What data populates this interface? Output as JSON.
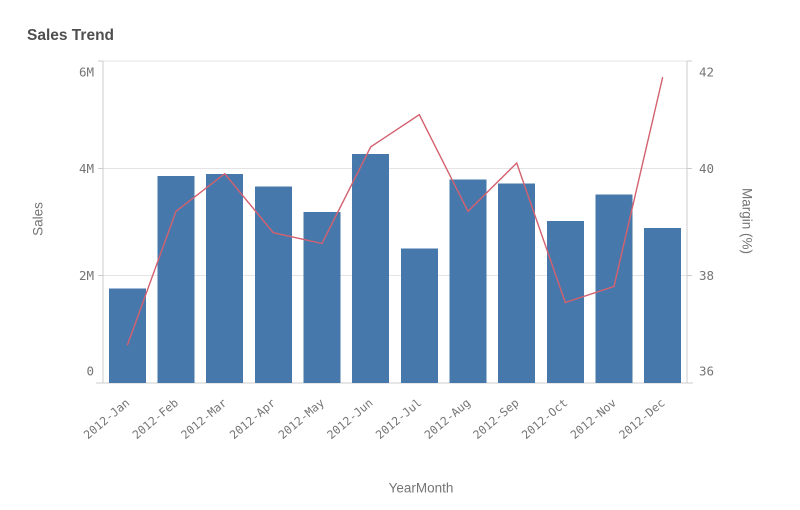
{
  "chart": {
    "title": "Sales Trend",
    "y_left_title": "Sales",
    "y_right_title": "Margin (%)",
    "x_title": "YearMonth"
  },
  "colors": {
    "bar": "#4678ab",
    "line": "#d4616f",
    "grid": "#e4e4e4",
    "axis_line": "#cccccc",
    "tick_text": "#757575",
    "title_text": "#4f4f4f"
  },
  "chart_data": {
    "type": "combo (bar + line)",
    "title": "Sales Trend",
    "categories": [
      "2012-Jan",
      "2012-Feb",
      "2012-Mar",
      "2012-Apr",
      "2012-May",
      "2012-Jun",
      "2012-Jul",
      "2012-Aug",
      "2012-Sep",
      "2012-Oct",
      "2012-Nov",
      "2012-Dec"
    ],
    "series": [
      {
        "name": "Sales",
        "type": "bar",
        "axis": "left",
        "values": [
          1760000,
          3860000,
          3890000,
          3660000,
          3190000,
          4270000,
          2510000,
          3790000,
          3720000,
          3020000,
          3510000,
          2890000
        ]
      },
      {
        "name": "Margin (%)",
        "type": "line",
        "axis": "right",
        "values": [
          36.7,
          39.2,
          39.9,
          38.8,
          38.6,
          40.4,
          41.0,
          39.2,
          40.1,
          37.5,
          37.8,
          41.7
        ]
      }
    ],
    "left_axis": {
      "title": "Sales",
      "tick_labels": [
        "0",
        "2M",
        "4M",
        "6M"
      ],
      "tick_values": [
        0,
        2000000,
        4000000,
        6000000
      ],
      "range": [
        0,
        6000000
      ]
    },
    "right_axis": {
      "title": "Margin (%)",
      "tick_labels": [
        "36",
        "38",
        "40",
        "42"
      ],
      "tick_values": [
        36,
        38,
        40,
        42
      ],
      "range": [
        36,
        42
      ]
    },
    "x_axis": {
      "title": "YearMonth",
      "label_rotation_deg": -40
    },
    "grid": true,
    "legend": false
  }
}
